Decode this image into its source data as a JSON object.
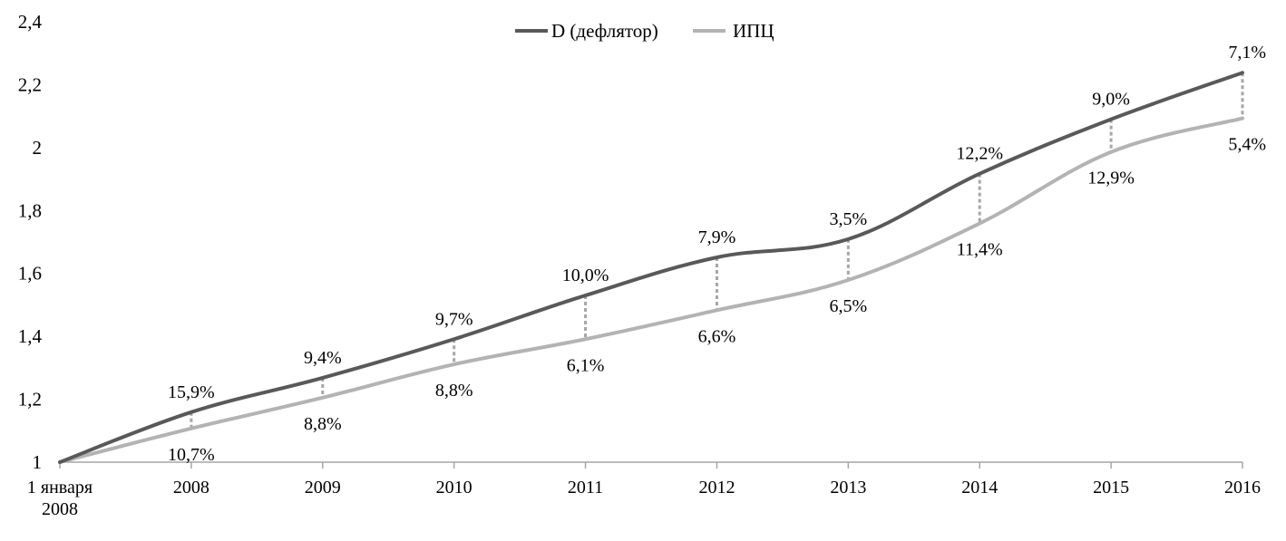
{
  "chart_data": {
    "type": "line",
    "categories": [
      "1 января\n2008",
      "2008",
      "2009",
      "2010",
      "2011",
      "2012",
      "2013",
      "2014",
      "2015",
      "2016"
    ],
    "ylim": [
      1,
      2.4
    ],
    "yticks": [
      1,
      1.2,
      1.4,
      1.6,
      1.8,
      2,
      2.2,
      2.4
    ],
    "ytick_labels": [
      "1",
      "1,2",
      "1,4",
      "1,6",
      "1,8",
      "2",
      "2,2",
      "2,4"
    ],
    "grid": false,
    "legend": "top-center",
    "series": [
      {
        "name": "D (дефлятор)",
        "color": "#595959",
        "values": [
          1.0,
          1.159,
          1.268,
          1.391,
          1.53,
          1.651,
          1.709,
          1.917,
          2.09,
          2.238
        ],
        "labels": [
          "",
          "15,9%",
          "9,4%",
          "9,7%",
          "10,0%",
          "7,9%",
          "3,5%",
          "12,2%",
          "9,0%",
          "7,1%"
        ]
      },
      {
        "name": "ИПЦ",
        "color": "#b3b3b3",
        "values": [
          1.0,
          1.107,
          1.205,
          1.311,
          1.391,
          1.483,
          1.579,
          1.759,
          1.986,
          2.093
        ],
        "labels": [
          "",
          "10,7%",
          "8,8%",
          "8,8%",
          "6,1%",
          "6,6%",
          "6,5%",
          "11,4%",
          "12,9%",
          "5,4%"
        ]
      }
    ],
    "gap_marker_color": "#a6a6a6",
    "axis_color": "#a6a6a6"
  }
}
